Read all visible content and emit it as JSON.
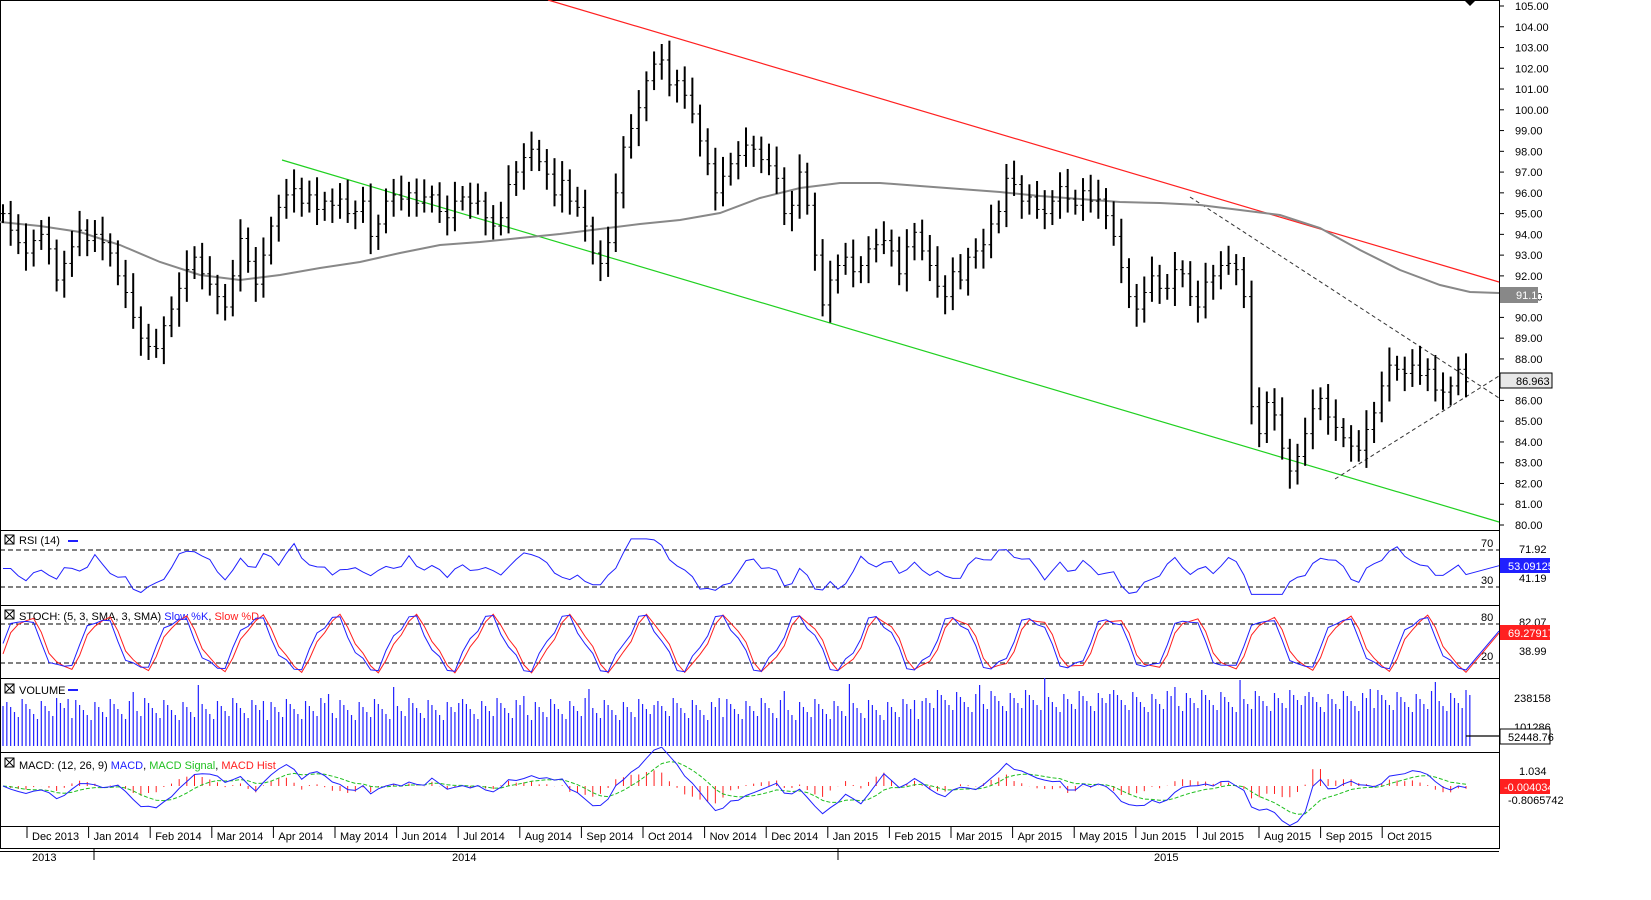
{
  "chart_data": {
    "type": "ohlc",
    "title": "",
    "price_panel": {
      "y_range": [
        80.0,
        105.0
      ],
      "y_ticks": [
        "105.00",
        "104.00",
        "103.00",
        "102.00",
        "101.00",
        "100.00",
        "99.00",
        "98.00",
        "97.00",
        "96.00",
        "95.00",
        "94.00",
        "93.00",
        "92.00",
        "91.00",
        "90.00",
        "89.00",
        "88.00",
        "87.00",
        "86.00",
        "85.00",
        "84.00",
        "83.00",
        "82.00",
        "81.00",
        "80.00"
      ],
      "sma_last": "91.127",
      "last_price": "86.963",
      "bar_closes": [
        95.0,
        94.2,
        93.6,
        93.1,
        93.7,
        94.0,
        93.3,
        91.8,
        92.6,
        93.4,
        94.2,
        93.7,
        94.0,
        93.6,
        93.1,
        92.0,
        91.2,
        90.0,
        89.0,
        88.6,
        88.5,
        89.6,
        90.4,
        91.4,
        92.3,
        92.9,
        92.1,
        91.6,
        91.0,
        90.5,
        92.0,
        93.8,
        92.7,
        91.6,
        93.0,
        94.4,
        95.3,
        95.9,
        96.2,
        95.5,
        95.9,
        95.2,
        95.6,
        95.4,
        95.7,
        95.0,
        95.1,
        95.6,
        93.9,
        94.5,
        95.6,
        95.9,
        95.7,
        96.0,
        95.5,
        95.8,
        95.9,
        95.1,
        94.8,
        95.6,
        95.8,
        95.5,
        95.6,
        94.8,
        94.4,
        94.8,
        96.4,
        97.0,
        97.7,
        98.1,
        97.5,
        96.9,
        95.9,
        96.6,
        95.6,
        95.3,
        94.4,
        93.1,
        92.6,
        93.6,
        96.0,
        98.2,
        99.1,
        100.1,
        101.4,
        102.2,
        102.4,
        101.2,
        101.4,
        100.7,
        99.8,
        98.5,
        97.4,
        96.0,
        96.8,
        97.4,
        97.8,
        98.3,
        98.1,
        97.6,
        97.3,
        96.7,
        95.0,
        95.4,
        97.0,
        95.4,
        93.0,
        90.6,
        91.8,
        92.5,
        92.9,
        92.2,
        92.5,
        93.3,
        93.5,
        93.7,
        93.2,
        92.1,
        93.4,
        94.1,
        93.2,
        92.5,
        91.5,
        91.0,
        92.2,
        91.8,
        92.9,
        93.2,
        93.5,
        94.5,
        95.1,
        96.7,
        96.4,
        95.6,
        95.8,
        95.2,
        95.0,
        95.6,
        96.3,
        95.7,
        95.4,
        96.1,
        95.6,
        95.7,
        94.9,
        93.9,
        92.4,
        91.0,
        90.4,
        91.2,
        92.0,
        91.4,
        91.4,
        92.3,
        92.1,
        91.0,
        90.5,
        91.7,
        92.0,
        92.5,
        92.6,
        92.3,
        91.0,
        85.7,
        84.4,
        85.9,
        85.3,
        83.7,
        82.6,
        83.3,
        84.4,
        85.6,
        86.1,
        85.2,
        84.7,
        84.2,
        83.8,
        83.6,
        84.6,
        85.4,
        86.7,
        87.7,
        87.5,
        87.3,
        87.7,
        87.2,
        87.5,
        86.5,
        86.4,
        86.7,
        87.5,
        86.9
      ]
    },
    "rsi": {
      "label": "RSI (14)",
      "levels": [
        "70",
        "30"
      ],
      "tick": "71.92",
      "tick2": "41.19",
      "last": "53.09125"
    },
    "stoch": {
      "label_prefix": "STOCH: (5, 3, SMA, 3, SMA)",
      "k": "Slow %K",
      "d": "Slow %D",
      "levels": [
        "80",
        "20"
      ],
      "tick": "82.07",
      "tick2": "38.99",
      "last": "69.27917"
    },
    "volume": {
      "label": "VOLUME",
      "tick": "238158",
      "tick2": "101286",
      "last": "52448.76"
    },
    "macd": {
      "label_prefix": "MACD: (12, 26, 9)",
      "macd": "MACD",
      "signal": "MACD Signal",
      "hist": "MACD Hist",
      "tick": "1.034",
      "tick2": "-0.8065742",
      "last": "-0.0040349"
    },
    "x_axis": {
      "months": [
        "Dec 2013",
        "Jan 2014",
        "Feb 2014",
        "Mar 2014",
        "Apr 2014",
        "May 2014",
        "Jun 2014",
        "Jul 2014",
        "Aug 2014",
        "Sep 2014",
        "Oct 2014",
        "Nov 2014",
        "Dec 2014",
        "Jan 2015",
        "Feb 2015",
        "Mar 2015",
        "Apr 2015",
        "May 2015",
        "Jun 2015",
        "Jul 2015",
        "Aug 2015",
        "Sep 2015",
        "Oct 2015"
      ],
      "years": [
        "2013",
        "2014",
        "2015"
      ]
    },
    "colors": {
      "bars": "#000000",
      "sma": "#888888",
      "upper_channel": "#ff2020",
      "lower_channel": "#20d020",
      "indicator": "#2020ff",
      "signal": "#ff2020",
      "macd_signal": "#20c020"
    }
  }
}
